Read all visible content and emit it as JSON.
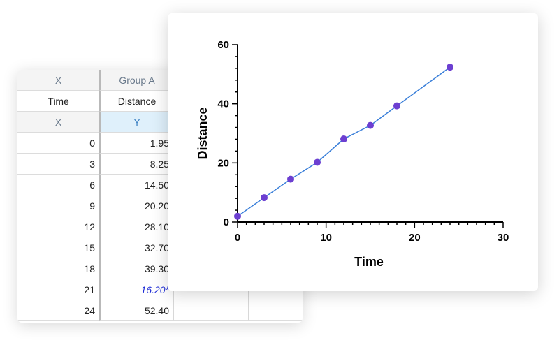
{
  "table": {
    "header_row1": [
      "X",
      "Group A"
    ],
    "header_row2": [
      "Time",
      "Distance"
    ],
    "header_row3": [
      "X",
      "Y"
    ],
    "rows": [
      {
        "x": "0",
        "y": "1.95"
      },
      {
        "x": "3",
        "y": "8.25"
      },
      {
        "x": "6",
        "y": "14.50"
      },
      {
        "x": "9",
        "y": "20.20"
      },
      {
        "x": "12",
        "y": "28.10"
      },
      {
        "x": "15",
        "y": "32.70"
      },
      {
        "x": "18",
        "y": "39.30"
      },
      {
        "x": "21",
        "y": "16.20*",
        "excluded": true
      },
      {
        "x": "24",
        "y": "52.40"
      }
    ]
  },
  "chart_data": {
    "type": "line",
    "xlabel": "Time",
    "ylabel": "Distance",
    "xlim": [
      0,
      30
    ],
    "ylim": [
      0,
      60
    ],
    "xticks": [
      "0",
      "10",
      "20",
      "30"
    ],
    "yticks": [
      "0",
      "20",
      "40",
      "60"
    ],
    "series": [
      {
        "x": [
          0,
          3,
          6,
          9,
          12,
          15,
          18,
          24
        ],
        "y": [
          1.95,
          8.25,
          14.5,
          20.2,
          28.1,
          32.7,
          39.3,
          52.4
        ]
      }
    ],
    "grid": false,
    "colors": {
      "line": "#3a7fd9",
      "marker": "#6c3fd1"
    }
  }
}
